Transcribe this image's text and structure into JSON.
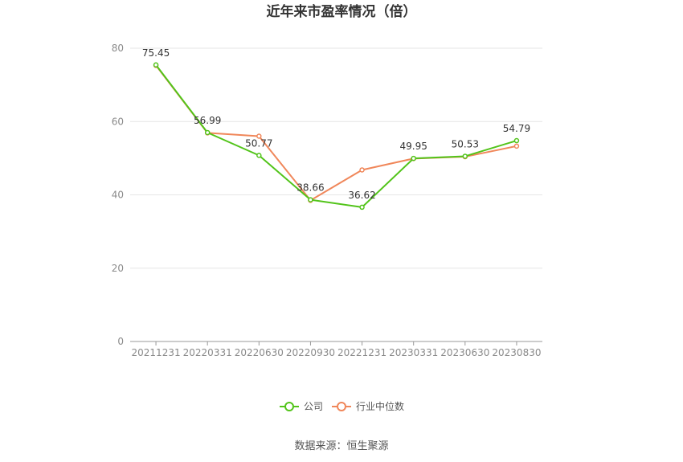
{
  "chart_data": {
    "type": "line",
    "title": "近年来市盈率情况（倍）",
    "xlabel": "",
    "ylabel": "",
    "categories": [
      "20211231",
      "20220331",
      "20220630",
      "20220930",
      "20221231",
      "20230331",
      "20230630",
      "20230830"
    ],
    "ylim": [
      0,
      80
    ],
    "yticks": [
      0,
      20,
      40,
      60,
      80
    ],
    "grid": true,
    "legend_position": "bottom-center",
    "series": [
      {
        "name": "公司",
        "color": "#52c41a",
        "values": [
          75.45,
          56.99,
          50.77,
          38.66,
          36.62,
          49.95,
          50.53,
          54.79
        ],
        "labels": [
          "75.45",
          "56.99",
          "50.77",
          "38.66",
          "36.62",
          "49.95",
          "50.53",
          "54.79"
        ]
      },
      {
        "name": "行业中位数",
        "color": "#f0875a",
        "values": [
          75.3,
          56.9,
          56.0,
          38.5,
          46.8,
          49.9,
          50.4,
          53.3
        ]
      }
    ]
  },
  "source": "数据来源：恒生聚源"
}
